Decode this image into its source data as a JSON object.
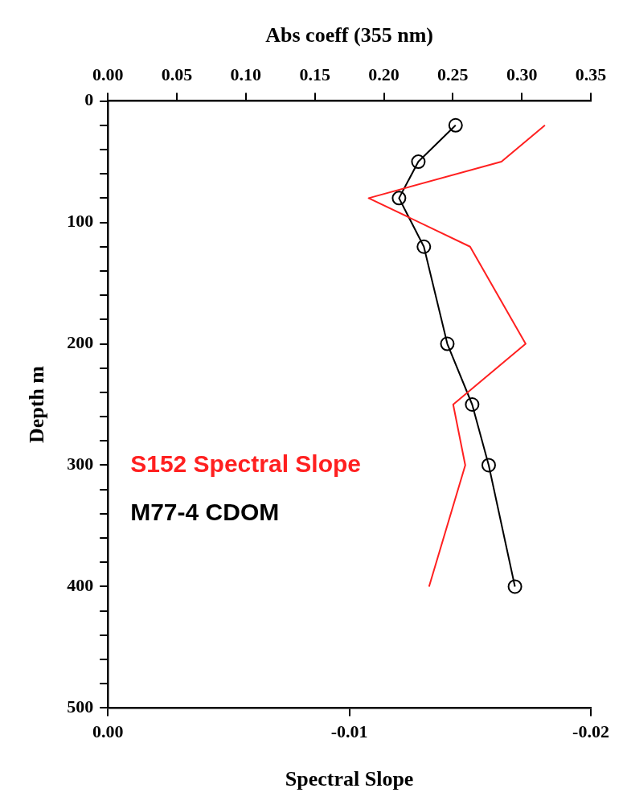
{
  "chart_data": {
    "type": "line",
    "xlabel": "Spectral Slope",
    "x2label": "Abs coeff (355 nm)",
    "ylabel": "Depth m",
    "xlim": [
      0,
      -0.02
    ],
    "xticks": [
      {
        "value": 0,
        "label": "0.00"
      },
      {
        "value": -0.01,
        "label": "-0.01"
      },
      {
        "value": -0.02,
        "label": "-0.02"
      }
    ],
    "x2lim": [
      0,
      0.35
    ],
    "x2ticks": [
      {
        "value": 0,
        "label": "0.00"
      },
      {
        "value": 0.05,
        "label": "0.05"
      },
      {
        "value": 0.1,
        "label": "0.10"
      },
      {
        "value": 0.15,
        "label": "0.15"
      },
      {
        "value": 0.2,
        "label": "0.20"
      },
      {
        "value": 0.25,
        "label": "0.25"
      },
      {
        "value": 0.3,
        "label": "0.30"
      },
      {
        "value": 0.35,
        "label": "0.35"
      }
    ],
    "ylim": [
      500,
      0
    ],
    "yticks": [
      0,
      {
        "value": 20,
        "label": null
      },
      {
        "value": 40,
        "label": null
      },
      {
        "value": 60,
        "label": null
      },
      {
        "value": 80,
        "label": null
      },
      100,
      {
        "value": 120,
        "label": null
      },
      {
        "value": 140,
        "label": null
      },
      {
        "value": 160,
        "label": null
      },
      {
        "value": 180,
        "label": null
      },
      200,
      {
        "value": 220,
        "label": null
      },
      {
        "value": 240,
        "label": null
      },
      {
        "value": 260,
        "label": null
      },
      {
        "value": 280,
        "label": null
      },
      300,
      {
        "value": 320,
        "label": null
      },
      {
        "value": 340,
        "label": null
      },
      {
        "value": 360,
        "label": null
      },
      {
        "value": 380,
        "label": null
      },
      400,
      {
        "value": 420,
        "label": null
      },
      {
        "value": 440,
        "label": null
      },
      {
        "value": 460,
        "label": null
      },
      {
        "value": 480,
        "label": null
      },
      500
    ],
    "grid": false,
    "series": [
      {
        "name": "S152 Spectral Slope",
        "color": "#ff2020",
        "marker": "none",
        "x": [
          -0.0181,
          -0.0163,
          -0.0108,
          -0.015,
          -0.0173,
          -0.0143,
          -0.0148,
          -0.0133
        ],
        "values": [
          20,
          50,
          80,
          120,
          200,
          250,
          300,
          400
        ]
      },
      {
        "name": "M77-4 CDOM",
        "color": "#000000",
        "marker": "circle",
        "axis": "x2",
        "x": [
          0.252,
          0.225,
          0.211,
          0.229,
          0.246,
          0.264,
          0.276,
          0.295
        ],
        "values": [
          20,
          50,
          80,
          120,
          200,
          250,
          300,
          400
        ]
      }
    ]
  }
}
